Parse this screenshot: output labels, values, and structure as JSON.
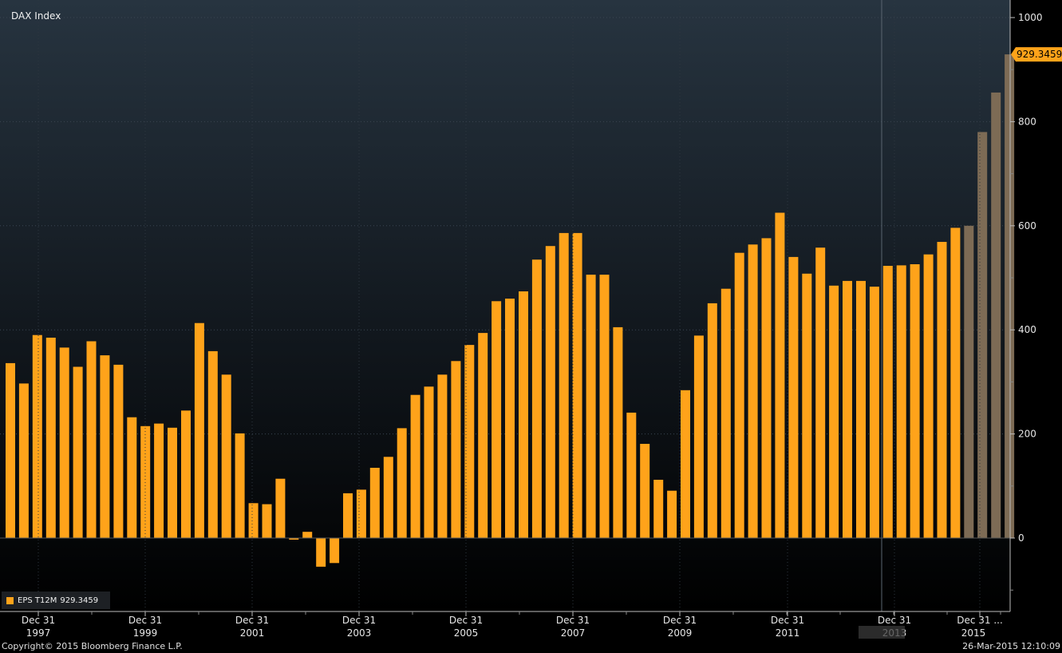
{
  "title": "DAX Index",
  "legend": {
    "label": "EPS T12M",
    "value": "929.3459"
  },
  "copyright": "Copyright© 2015 Bloomberg Finance L.P.",
  "timestamp": "26-Mar-2015 12:10:09",
  "colors": {
    "bar": "#ffa31a",
    "bar_estimate": "#7d6b55",
    "last_value_tag": "#ffa31a"
  },
  "chart_data": {
    "type": "bar",
    "series": [
      {
        "name": "EPS T12M",
        "values": [
          336,
          297,
          390,
          385,
          366,
          329,
          378,
          351,
          333,
          232,
          215,
          220,
          212,
          245,
          413,
          359,
          314,
          201,
          67,
          65,
          114,
          -3,
          12,
          -55,
          -48,
          86,
          93,
          135,
          156,
          211,
          275,
          291,
          314,
          340,
          371,
          394,
          455,
          460,
          474,
          535,
          561,
          586,
          586,
          506,
          506,
          405,
          241,
          181,
          112,
          91,
          284,
          389,
          451,
          479,
          548,
          564,
          576,
          625,
          540,
          508,
          558,
          485,
          494,
          494,
          483,
          523,
          524,
          526,
          545,
          569,
          596
        ]
      },
      {
        "name": "EPS T12M estimate",
        "values": [
          600,
          780,
          856,
          929.3459
        ]
      }
    ],
    "y_axis": {
      "min": -100,
      "max": 1000,
      "ticks": [
        0,
        200,
        400,
        600,
        800,
        1000
      ],
      "side": "right"
    },
    "x_axis": {
      "ticks": [
        {
          "line1": "Dec 31",
          "line2": "1997"
        },
        {
          "line1": "Dec 31",
          "line2": "1999"
        },
        {
          "line1": "Dec 31",
          "line2": "2001"
        },
        {
          "line1": "Dec 31",
          "line2": "2003"
        },
        {
          "line1": "Dec 31",
          "line2": "2005"
        },
        {
          "line1": "Dec 31",
          "line2": "2007"
        },
        {
          "line1": "Dec 31",
          "line2": "2009"
        },
        {
          "line1": "Dec 31",
          "line2": "2011"
        },
        {
          "line1": "Dec 31",
          "line2": "2013"
        },
        {
          "line1": "Dec 31 ...",
          "line2": "2015"
        }
      ]
    },
    "last_value_label": "929.3459",
    "grid": true,
    "legend_position": "bottom-left"
  }
}
